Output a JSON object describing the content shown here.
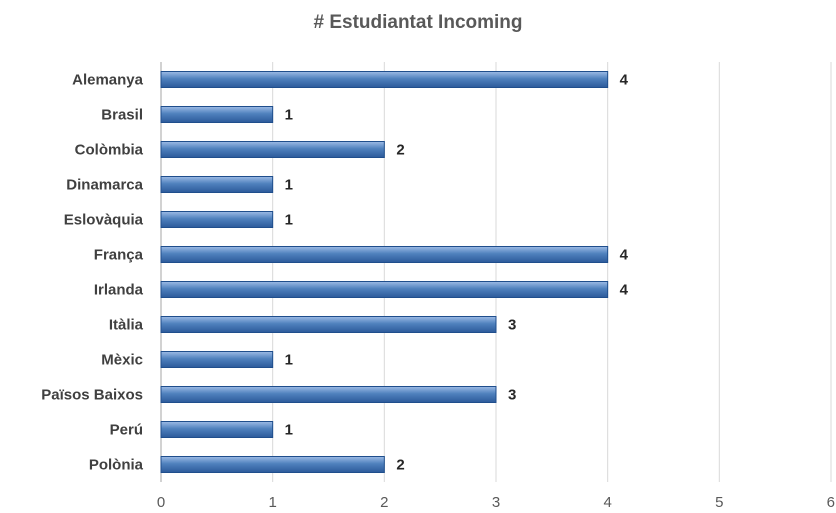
{
  "chart_data": {
    "type": "bar",
    "orientation": "horizontal",
    "title": "# Estudiantat Incoming",
    "xlabel": "",
    "ylabel": "",
    "categories": [
      "Alemanya",
      "Brasil",
      "Colòmbia",
      "Dinamarca",
      "Eslovàquia",
      "França",
      "Irlanda",
      "Itàlia",
      "Mèxic",
      "Països Baixos",
      "Perú",
      "Polònia"
    ],
    "values": [
      4,
      1,
      2,
      1,
      1,
      4,
      4,
      3,
      1,
      3,
      1,
      2
    ],
    "xlim": [
      0,
      6
    ],
    "ticks": [
      "0",
      "1",
      "2",
      "3",
      "4",
      "5",
      "6"
    ],
    "grid": true,
    "data_labels": true,
    "legend": "none",
    "bar_color": "#4a7ebb"
  }
}
